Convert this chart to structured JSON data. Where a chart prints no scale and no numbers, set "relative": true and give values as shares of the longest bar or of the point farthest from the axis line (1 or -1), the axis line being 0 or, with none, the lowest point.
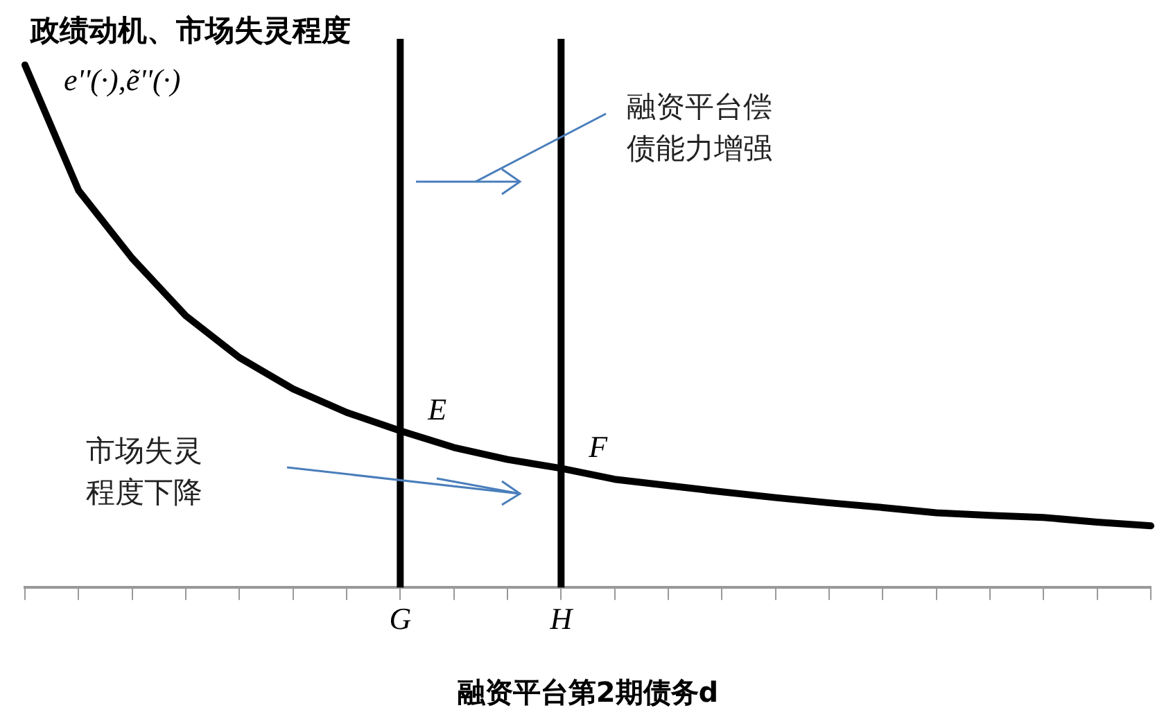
{
  "chart_data": {
    "type": "line",
    "relative": true,
    "ylabel": "政绩动机、市场失灵程度",
    "xlabel": "融资平台第2期债务d",
    "grid": false,
    "legend": false,
    "marker": "none",
    "line_style": "solid",
    "categories": [
      null,
      null,
      null,
      null,
      null,
      null,
      null,
      "G",
      null,
      null,
      "H",
      null,
      null,
      null,
      null,
      null,
      null,
      null,
      null,
      null,
      null,
      null
    ],
    "series": [
      {
        "color": "#000000",
        "values": [
          1,
          0.76,
          0.63,
          0.52,
          0.44,
          0.38,
          0.335,
          0.3,
          0.268,
          0.245,
          0.228,
          0.207,
          0.195,
          0.183,
          0.172,
          0.162,
          0.153,
          0.143,
          0.138,
          0.134,
          0.125,
          0.118
        ]
      }
    ],
    "ref_lines": [
      {
        "axis": "x",
        "value": "G",
        "color": "#000000"
      },
      {
        "axis": "x",
        "value": "H",
        "color": "#000000"
      }
    ],
    "annotations": [
      "e''(·),ẽ''(·)",
      "融资平台偿债能力增强",
      "市场失灵程度下降",
      {
        "text": "E",
        "x": "G",
        "y": 0.3
      },
      {
        "text": "F",
        "x": "H",
        "y": 0.228
      }
    ]
  }
}
